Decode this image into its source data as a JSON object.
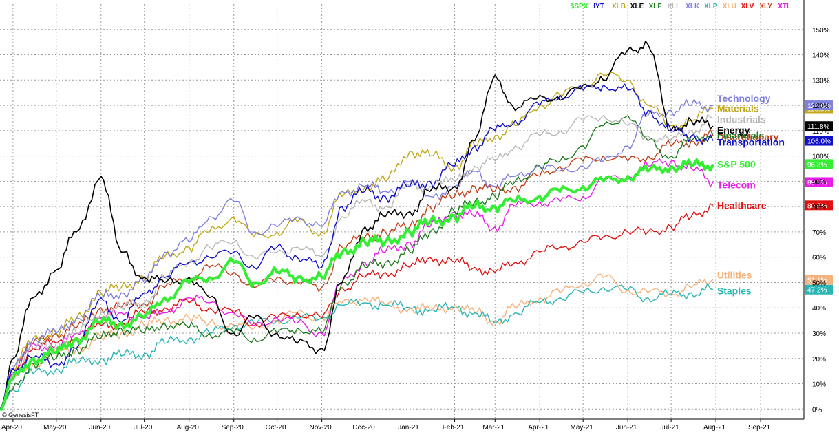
{
  "credit": "© GenesisFT",
  "chart_data": {
    "type": "line",
    "title": "",
    "xlabel": "",
    "ylabel": "",
    "y_ticks": [
      "0%",
      "10%",
      "20%",
      "30%",
      "40%",
      "50%",
      "60%",
      "70%",
      "80%",
      "90%",
      "100%",
      "110%",
      "120%",
      "130%",
      "140%",
      "150%"
    ],
    "ylim": [
      -4,
      160
    ],
    "x_ticks": [
      {
        "label": "Apr-20",
        "date": "2020-04-01"
      },
      {
        "label": "May-20",
        "date": "2020-05-01"
      },
      {
        "label": "Jun-20",
        "date": "2020-06-01"
      },
      {
        "label": "Jul-20",
        "date": "2020-07-01"
      },
      {
        "label": "Aug-20",
        "date": "2020-08-01"
      },
      {
        "label": "Sep-20",
        "date": "2020-09-01"
      },
      {
        "label": "Oct-20",
        "date": "2020-10-01"
      },
      {
        "label": "Nov-20",
        "date": "2020-11-01"
      },
      {
        "label": "Dec-20",
        "date": "2020-12-01"
      },
      {
        "label": "Jan-21",
        "date": "2021-01-01"
      },
      {
        "label": "Feb-21",
        "date": "2021-02-01"
      },
      {
        "label": "Mar-21",
        "date": "2021-03-01"
      },
      {
        "label": "Apr-21",
        "date": "2021-04-01"
      },
      {
        "label": "May-21",
        "date": "2021-05-01"
      },
      {
        "label": "Jun-21",
        "date": "2021-06-01"
      },
      {
        "label": "Jul-21",
        "date": "2021-07-01"
      },
      {
        "label": "Aug-21",
        "date": "2021-08-01"
      },
      {
        "label": "Sep-21",
        "date": "2021-09-01"
      }
    ],
    "xlim": [
      "2020-03-23",
      "2021-10-01"
    ],
    "grid": true,
    "legend_placement": "top-right",
    "dates": [
      "2020-03-23",
      "2020-04-01",
      "2020-04-15",
      "2020-05-01",
      "2020-05-15",
      "2020-06-01",
      "2020-06-15",
      "2020-07-01",
      "2020-07-15",
      "2020-08-01",
      "2020-08-15",
      "2020-09-01",
      "2020-09-15",
      "2020-10-01",
      "2020-10-15",
      "2020-11-01",
      "2020-11-15",
      "2020-12-01",
      "2020-12-15",
      "2021-01-01",
      "2021-01-15",
      "2021-02-01",
      "2021-02-15",
      "2021-03-01",
      "2021-03-15",
      "2021-04-01",
      "2021-04-15",
      "2021-05-01",
      "2021-05-15",
      "2021-06-01",
      "2021-06-15",
      "2021-07-01",
      "2021-07-15",
      "2021-07-30"
    ],
    "series": [
      {
        "ticker": "XLU",
        "label": "Utilities",
        "badge": "51.1%",
        "color": "#f5b27a",
        "width": 1.4,
        "values": [
          0,
          12,
          18,
          22,
          24,
          28,
          30,
          33,
          35,
          36,
          34,
          33,
          32,
          35,
          38,
          36,
          42,
          44,
          41,
          40,
          39,
          41,
          38,
          35,
          40,
          44,
          46,
          50,
          52,
          47,
          46,
          46,
          48,
          51.1
        ]
      },
      {
        "ticker": "XLP",
        "label": "Staples",
        "badge": "47.2%",
        "color": "#2bb5b5",
        "width": 1.4,
        "values": [
          0,
          8,
          14,
          16,
          18,
          20,
          21,
          22,
          26,
          28,
          30,
          33,
          34,
          35,
          36,
          36,
          41,
          42,
          41,
          40,
          39,
          40,
          38,
          34,
          38,
          42,
          44,
          46,
          48,
          47,
          44,
          45,
          46,
          47.2
        ]
      },
      {
        "ticker": "XLV",
        "label": "Healthcare",
        "badge": "80.5%",
        "color": "#e01010",
        "width": 1.4,
        "values": [
          0,
          14,
          24,
          26,
          28,
          33,
          34,
          38,
          40,
          42,
          40,
          38,
          34,
          36,
          38,
          36,
          48,
          52,
          54,
          56,
          60,
          58,
          56,
          54,
          58,
          62,
          64,
          66,
          68,
          70,
          70,
          72,
          76,
          80.5
        ]
      },
      {
        "ticker": "XTL",
        "label": "Telecom",
        "badge": "89.7%",
        "color": "#e81ee8",
        "width": 1.4,
        "values": [
          0,
          14,
          26,
          24,
          30,
          36,
          38,
          36,
          38,
          44,
          42,
          38,
          33,
          36,
          34,
          30,
          50,
          58,
          62,
          66,
          72,
          78,
          76,
          72,
          80,
          82,
          82,
          84,
          90,
          92,
          96,
          98,
          95,
          89.7
        ]
      },
      {
        "ticker": "XLY",
        "label": "Discretionary",
        "badge": "",
        "color": "#c0401a",
        "width": 1.4,
        "values": [
          0,
          16,
          26,
          30,
          32,
          40,
          40,
          42,
          48,
          52,
          56,
          54,
          48,
          52,
          50,
          48,
          64,
          68,
          70,
          72,
          80,
          84,
          88,
          86,
          88,
          92,
          96,
          98,
          100,
          98,
          100,
          104,
          106,
          108
        ]
      },
      {
        "ticker": "XLF",
        "label": "Financials",
        "badge": "",
        "color": "#1e7a1e",
        "width": 1.4,
        "values": [
          0,
          8,
          18,
          20,
          24,
          28,
          32,
          30,
          34,
          32,
          30,
          30,
          28,
          30,
          32,
          30,
          50,
          56,
          58,
          62,
          70,
          78,
          82,
          84,
          90,
          96,
          98,
          104,
          112,
          116,
          106,
          100,
          106,
          109
        ]
      },
      {
        "ticker": "XLB",
        "label": "Materials",
        "badge": "118.8%",
        "color": "#c0a818",
        "width": 1.4,
        "values": [
          0,
          16,
          28,
          30,
          36,
          46,
          48,
          52,
          60,
          64,
          70,
          76,
          68,
          70,
          74,
          70,
          84,
          88,
          90,
          102,
          100,
          96,
          104,
          108,
          112,
          120,
          124,
          128,
          132,
          130,
          120,
          112,
          114,
          118.8
        ]
      },
      {
        "ticker": "XLI",
        "label": "Industrials",
        "badge": "",
        "color": "#b8b8b8",
        "width": 1.4,
        "values": [
          0,
          14,
          24,
          26,
          30,
          38,
          40,
          42,
          52,
          58,
          64,
          66,
          60,
          62,
          64,
          60,
          76,
          82,
          80,
          88,
          88,
          90,
          96,
          98,
          104,
          108,
          110,
          114,
          116,
          112,
          108,
          106,
          110,
          115
        ]
      },
      {
        "ticker": "XLK",
        "label": "Technology",
        "badge": "120.0%",
        "color": "#8080e0",
        "width": 1.4,
        "values": [
          0,
          16,
          28,
          30,
          36,
          44,
          46,
          50,
          62,
          66,
          76,
          82,
          70,
          72,
          76,
          72,
          86,
          88,
          86,
          90,
          84,
          88,
          94,
          88,
          92,
          96,
          94,
          96,
          98,
          104,
          116,
          118,
          120,
          120
        ]
      },
      {
        "ticker": "XLE",
        "label": "Energy",
        "badge": "111.8%",
        "color": "#000000",
        "width": 1.6,
        "values": [
          0,
          20,
          44,
          55,
          70,
          92,
          62,
          52,
          50,
          52,
          44,
          30,
          36,
          30,
          26,
          24,
          50,
          72,
          76,
          78,
          86,
          88,
          106,
          132,
          118,
          124,
          122,
          128,
          130,
          142,
          144,
          110,
          114,
          111.8
        ]
      },
      {
        "ticker": "IYT",
        "label": "Transportation",
        "badge": "106.0%",
        "color": "#1010c8",
        "width": 1.4,
        "values": [
          0,
          16,
          20,
          18,
          24,
          44,
          34,
          46,
          52,
          58,
          60,
          62,
          56,
          64,
          60,
          56,
          80,
          86,
          84,
          88,
          90,
          96,
          104,
          110,
          114,
          120,
          124,
          126,
          128,
          126,
          118,
          110,
          108,
          106
        ]
      },
      {
        "ticker": "$SPX",
        "label": "S&P 500",
        "badge": "96.8%",
        "color": "#33ee33",
        "width": 4,
        "values": [
          0,
          12,
          20,
          22,
          28,
          34,
          34,
          36,
          44,
          50,
          52,
          58,
          50,
          54,
          52,
          52,
          62,
          66,
          66,
          70,
          74,
          76,
          80,
          80,
          82,
          84,
          86,
          88,
          90,
          92,
          94,
          96,
          96,
          96.8
        ]
      }
    ],
    "legend": [
      {
        "text": "$SPX",
        "color": "#33ee33"
      },
      {
        "text": "IYT",
        "color": "#1010c8"
      },
      {
        "text": "XLB",
        "color": "#c0a818"
      },
      {
        "text": "XLE",
        "color": "#000000"
      },
      {
        "text": "XLF",
        "color": "#1e7a1e"
      },
      {
        "text": "XLI",
        "color": "#b8b8b8"
      },
      {
        "text": "XLK",
        "color": "#8080e0"
      },
      {
        "text": "XLP",
        "color": "#2bb5b5"
      },
      {
        "text": "XLU",
        "color": "#f5b27a"
      },
      {
        "text": "XLV",
        "color": "#e01010"
      },
      {
        "text": "XLY",
        "color": "#c0401a"
      },
      {
        "text": "XTL",
        "color": "#e81ee8"
      }
    ]
  }
}
